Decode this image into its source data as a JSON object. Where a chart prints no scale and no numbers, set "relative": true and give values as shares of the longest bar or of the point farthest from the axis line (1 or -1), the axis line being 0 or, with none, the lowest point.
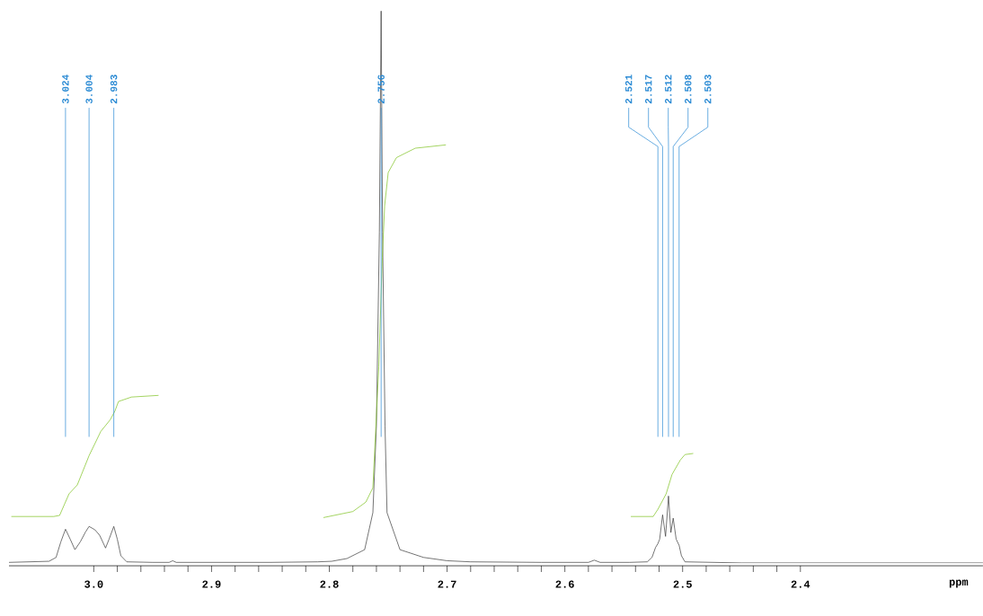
{
  "chart_data": {
    "type": "line",
    "relative": true,
    "xlabel": "ppm",
    "xlim": [
      3.072,
      2.245
    ],
    "xticks": [
      {
        "value": 3,
        "label": "3.0"
      },
      2.9,
      2.8,
      2.7,
      2.6,
      2.5,
      2.4
    ],
    "marker": "none",
    "line_style": "solid",
    "grid": false,
    "series": [
      {
        "color": "#3a3a3a",
        "x": [
          3.072,
          3.038,
          3.032,
          3.028,
          3.024,
          3.02,
          3.016,
          3.0115,
          3.007,
          3.004,
          2.999,
          2.995,
          2.99,
          2.987,
          2.983,
          2.98,
          2.977,
          2.972,
          2.95,
          2.936,
          2.933,
          2.93,
          2.9,
          2.85,
          2.81,
          2.798,
          2.785,
          2.77,
          2.763,
          2.76,
          2.7575,
          2.756,
          2.7548,
          2.7527,
          2.751,
          2.74,
          2.72,
          2.7,
          2.68,
          2.62,
          2.58,
          2.575,
          2.57,
          2.545,
          2.53,
          2.526,
          2.523,
          2.521,
          2.5195,
          2.517,
          2.5145,
          2.512,
          2.51,
          2.508,
          2.5055,
          2.503,
          2.501,
          2.498,
          2.45,
          2.4,
          2.3,
          2.245
        ],
        "values": [
          0.003,
          0.005,
          0.012,
          0.04,
          0.063,
          0.045,
          0.026,
          0.04,
          0.058,
          0.068,
          0.062,
          0.052,
          0.029,
          0.045,
          0.068,
          0.045,
          0.015,
          0.004,
          0.003,
          0.003,
          0.006,
          0.003,
          0.003,
          0.003,
          0.004,
          0.005,
          0.01,
          0.026,
          0.093,
          0.25,
          0.6,
          1.0,
          0.6,
          0.25,
          0.093,
          0.026,
          0.012,
          0.006,
          0.004,
          0.003,
          0.003,
          0.007,
          0.003,
          0.003,
          0.004,
          0.012,
          0.03,
          0.037,
          0.045,
          0.089,
          0.05,
          0.123,
          0.057,
          0.083,
          0.045,
          0.034,
          0.015,
          0.004,
          0.002,
          0.002,
          0.002,
          0.002
        ]
      },
      {
        "color": "#7dc21e",
        "x": [
          3.07,
          3.034,
          3.029,
          3.021,
          3.014,
          3.004,
          2.994,
          2.986,
          2.982,
          2.979,
          2.968,
          2.945
        ],
        "values": [
          0.086,
          0.086,
          0.088,
          0.127,
          0.143,
          0.196,
          0.24,
          0.261,
          0.277,
          0.294,
          0.302,
          0.305
        ]
      },
      {
        "color": "#7dc21e",
        "x": [
          2.805,
          2.78,
          2.769,
          2.763,
          2.758,
          2.755,
          2.753,
          2.75,
          2.743,
          2.727,
          2.701
        ],
        "values": [
          0.084,
          0.095,
          0.112,
          0.138,
          0.357,
          0.555,
          0.648,
          0.708,
          0.735,
          0.752,
          0.758
        ]
      },
      {
        "color": "#7dc21e",
        "x": [
          2.544,
          2.525,
          2.521,
          2.514,
          2.509,
          2.502,
          2.498,
          2.491
        ],
        "values": [
          0.086,
          0.086,
          0.099,
          0.127,
          0.162,
          0.188,
          0.198,
          0.2
        ]
      }
    ],
    "annotations": [
      {
        "text": "3.024",
        "x": 3.024
      },
      {
        "text": "3.004",
        "x": 3.004
      },
      {
        "text": "2.983",
        "x": 2.983
      },
      {
        "text": "2.756",
        "x": 2.756
      },
      {
        "text": "2.521",
        "x": 2.521
      },
      {
        "text": "2.517",
        "x": 2.517
      },
      {
        "text": "2.512",
        "x": 2.512
      },
      {
        "text": "2.508",
        "x": 2.508
      },
      {
        "text": "2.503",
        "x": 2.503
      }
    ]
  }
}
